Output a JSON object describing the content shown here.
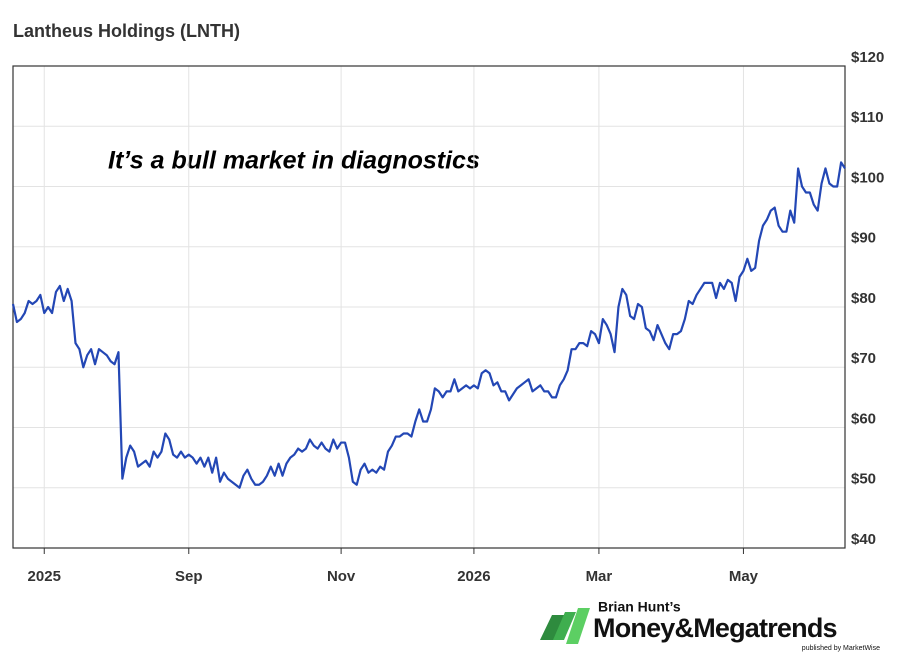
{
  "chart_data": {
    "type": "line",
    "title": "Lantheus Holdings (LNTH)",
    "annotation": "It’s a bull market in diagnostics",
    "series": [
      {
        "name": "LNTH",
        "color": "#2347b5",
        "values": [
          80.5,
          77.5,
          78,
          79,
          81,
          80.5,
          81,
          82,
          79,
          80,
          79,
          82.5,
          83.5,
          81,
          83,
          81,
          74,
          73,
          70,
          72,
          73,
          70.5,
          73,
          72.5,
          72,
          71,
          70.5,
          72.5,
          51.5,
          55,
          57,
          56,
          53.5,
          54,
          54.5,
          53.5,
          56,
          55,
          56,
          59,
          58,
          55.5,
          55,
          56,
          55,
          55.5,
          55,
          54,
          55,
          53.5,
          55,
          52.5,
          55,
          51,
          52.5,
          51.5,
          51,
          50.5,
          50,
          52,
          53,
          51.5,
          50.5,
          50.5,
          51,
          52,
          53.5,
          52,
          54,
          52,
          54,
          55,
          55.5,
          56.5,
          56,
          56.5,
          58,
          57,
          56.5,
          57.5,
          56.5,
          56,
          58,
          56.5,
          57.5,
          57.5,
          55,
          51,
          50.5,
          53,
          54,
          52.5,
          53,
          52.5,
          53.5,
          53,
          56,
          57,
          58.5,
          58.5,
          59,
          59,
          58.5,
          61,
          63,
          61,
          61,
          63,
          66.5,
          66,
          65,
          66,
          66,
          68,
          66,
          66.5,
          67,
          66.5,
          67,
          66.5,
          69,
          69.5,
          69,
          67,
          67.5,
          66,
          66,
          64.5,
          65.5,
          66.5,
          67,
          67.5,
          68,
          66,
          66.5,
          67,
          66,
          66,
          65,
          65,
          67,
          68,
          69.5,
          73,
          73,
          74,
          74,
          73.5,
          76,
          75.5,
          74,
          78,
          77,
          75.5,
          72.5,
          80,
          83,
          82,
          78.5,
          78,
          80.5,
          80,
          76.5,
          76,
          74.5,
          77,
          75.5,
          74,
          73,
          75.5,
          75.5,
          76,
          78,
          81,
          80.5,
          82,
          83,
          84,
          84,
          84,
          81.5,
          84,
          83,
          84.5,
          84,
          81,
          85,
          86,
          88,
          86,
          86.5,
          91,
          93.5,
          94.5,
          96,
          96.5,
          93.5,
          92.5,
          92.5,
          96,
          94,
          103,
          100,
          99,
          99,
          97,
          96,
          100.5,
          103,
          100.5,
          100,
          100,
          104,
          103
        ]
      }
    ],
    "xlim": [
      0,
      213
    ],
    "xticks": [
      {
        "value": 8,
        "label": "2025"
      },
      {
        "value": 45,
        "label": "Sep"
      },
      {
        "value": 84,
        "label": "Nov"
      },
      {
        "value": 118,
        "label": "2026"
      },
      {
        "value": 150,
        "label": "Mar"
      },
      {
        "value": 187,
        "label": "May"
      }
    ],
    "ylim": [
      40,
      120
    ],
    "yticks": [
      {
        "value": 40,
        "label": "$40"
      },
      {
        "value": 50,
        "label": "$50"
      },
      {
        "value": 60,
        "label": "$60"
      },
      {
        "value": 70,
        "label": "$70"
      },
      {
        "value": 80,
        "label": "$80"
      },
      {
        "value": 90,
        "label": "$90"
      },
      {
        "value": 100,
        "label": "$100"
      },
      {
        "value": 110,
        "label": "$110"
      },
      {
        "value": 120,
        "label": "$120"
      }
    ],
    "grid": true
  },
  "logo": {
    "byline": "Brian Hunt’s",
    "brand": "Money&Megatrends",
    "publisher": "published by MarketWise"
  }
}
